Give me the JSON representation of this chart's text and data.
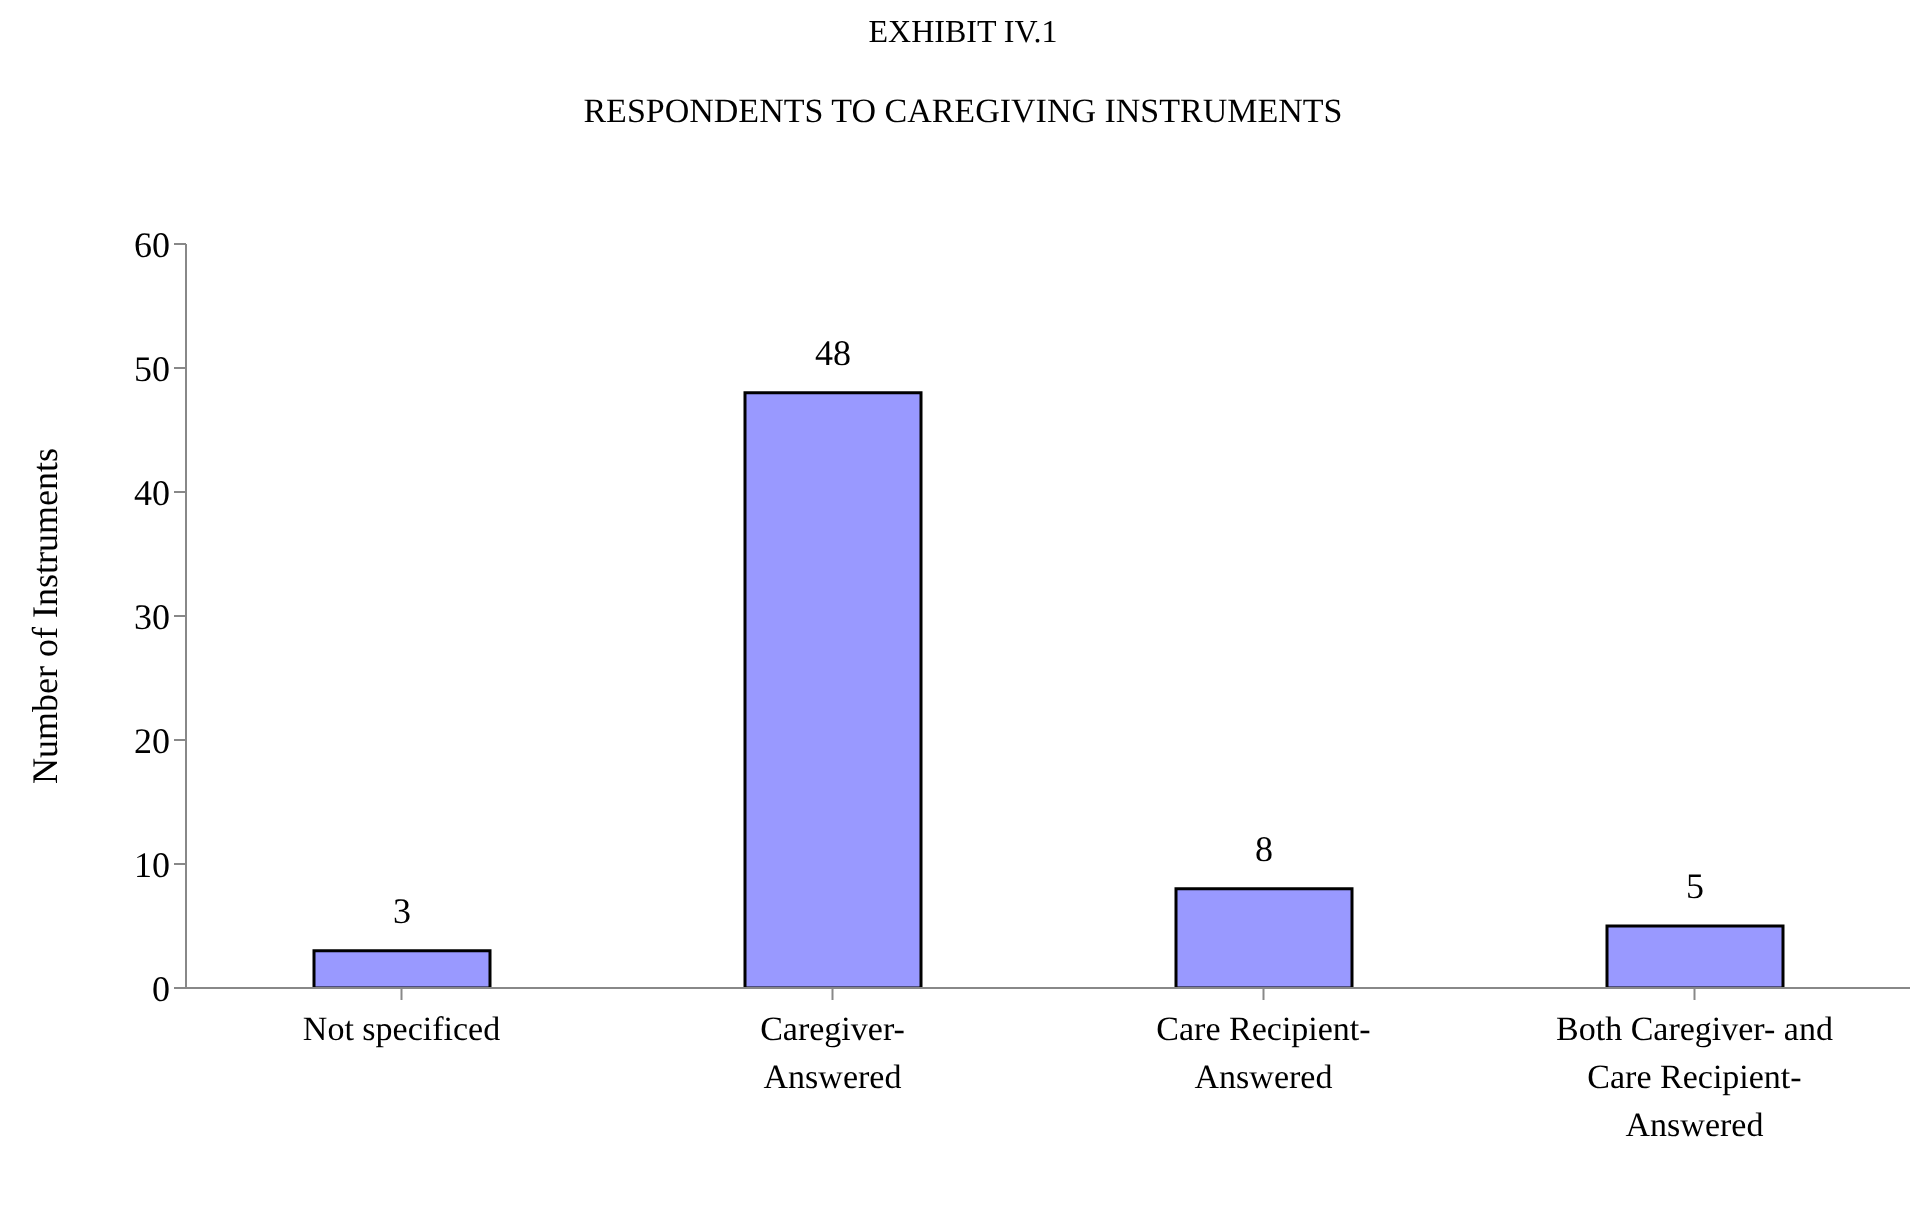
{
  "chart_data": {
    "type": "bar",
    "title": "EXHIBIT IV.1",
    "subtitle": "RESPONDENTS TO CAREGIVING INSTRUMENTS",
    "ylabel": "Number of Instruments",
    "categories": [
      "Not specificed",
      "Caregiver-Answered",
      "Care Recipient-Answered",
      "Both Caregiver- and Care Recipient-Answered"
    ],
    "values": [
      3,
      48,
      8,
      5
    ],
    "color": "#9999ff",
    "ylim": [
      0,
      60
    ],
    "yticks": [
      0,
      10,
      20,
      30,
      40,
      50,
      60
    ],
    "data_labels": true,
    "grid": false,
    "legend": false
  }
}
